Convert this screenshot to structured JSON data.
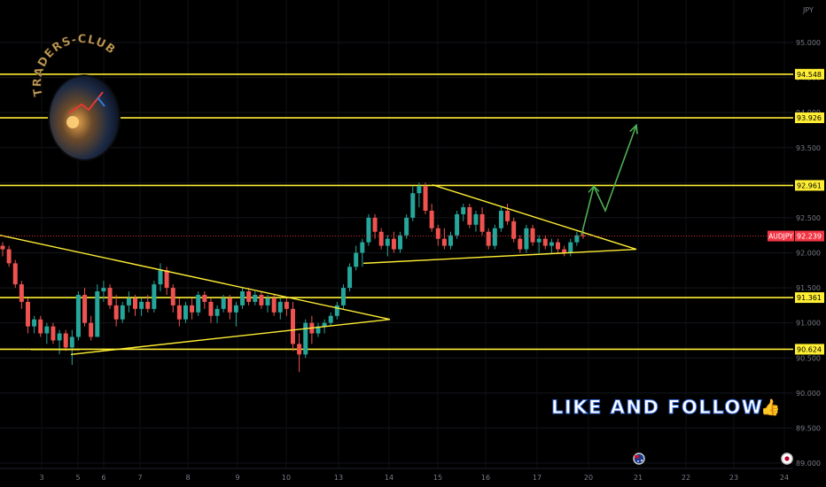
{
  "chart_data": {
    "type": "candlestick",
    "symbol": "AUDJPY",
    "currency": "JPY",
    "current_price": 92.239,
    "ylim": [
      88.95,
      95.25
    ],
    "y_ticks": [
      "95.000",
      "94.500",
      "94.000",
      "93.500",
      "93.000",
      "92.500",
      "92.000",
      "91.500",
      "91.000",
      "90.500",
      "90.000",
      "89.500",
      "89.000"
    ],
    "x_ticks": [
      "3",
      "5",
      "6",
      "7",
      "8",
      "9",
      "10",
      "13",
      "14",
      "15",
      "16",
      "17",
      "20",
      "21",
      "22",
      "23",
      "24"
    ],
    "levels": [
      94.548,
      93.926,
      92.961,
      91.361,
      90.624
    ],
    "level_labels": [
      "94.548",
      "93.926",
      "92.961",
      "91.361",
      "90.624"
    ],
    "ohlc": [
      [
        92.1,
        92.15,
        91.95,
        92.05
      ],
      [
        92.05,
        92.1,
        91.8,
        91.85
      ],
      [
        91.85,
        91.9,
        91.5,
        91.55
      ],
      [
        91.55,
        91.6,
        91.2,
        91.3
      ],
      [
        91.3,
        91.35,
        90.85,
        90.95
      ],
      [
        90.95,
        91.1,
        90.85,
        91.05
      ],
      [
        91.05,
        91.1,
        90.8,
        90.85
      ],
      [
        90.85,
        91.0,
        90.7,
        90.95
      ],
      [
        90.95,
        91.0,
        90.7,
        90.75
      ],
      [
        90.75,
        90.9,
        90.55,
        90.85
      ],
      [
        90.85,
        90.9,
        90.6,
        90.65
      ],
      [
        90.65,
        90.9,
        90.4,
        90.8
      ],
      [
        90.8,
        91.45,
        90.75,
        91.4
      ],
      [
        91.4,
        91.5,
        90.95,
        91.0
      ],
      [
        91.0,
        91.1,
        90.75,
        90.8
      ],
      [
        90.8,
        91.55,
        90.8,
        91.45
      ],
      [
        91.45,
        91.6,
        91.3,
        91.5
      ],
      [
        91.5,
        91.55,
        91.2,
        91.25
      ],
      [
        91.25,
        91.4,
        90.95,
        91.05
      ],
      [
        91.05,
        91.3,
        91.0,
        91.25
      ],
      [
        91.25,
        91.45,
        91.15,
        91.35
      ],
      [
        91.35,
        91.4,
        91.1,
        91.2
      ],
      [
        91.2,
        91.35,
        91.1,
        91.3
      ],
      [
        91.3,
        91.4,
        91.15,
        91.2
      ],
      [
        91.2,
        91.6,
        91.15,
        91.55
      ],
      [
        91.55,
        91.85,
        91.45,
        91.75
      ],
      [
        91.75,
        91.8,
        91.4,
        91.5
      ],
      [
        91.5,
        91.55,
        91.15,
        91.25
      ],
      [
        91.25,
        91.35,
        90.95,
        91.05
      ],
      [
        91.05,
        91.3,
        91.0,
        91.25
      ],
      [
        91.25,
        91.35,
        91.05,
        91.15
      ],
      [
        91.15,
        91.45,
        91.1,
        91.4
      ],
      [
        91.4,
        91.45,
        91.2,
        91.3
      ],
      [
        91.3,
        91.35,
        91.0,
        91.1
      ],
      [
        91.1,
        91.25,
        91.0,
        91.2
      ],
      [
        91.2,
        91.4,
        91.15,
        91.35
      ],
      [
        91.35,
        91.4,
        91.05,
        91.15
      ],
      [
        91.15,
        91.3,
        90.95,
        91.25
      ],
      [
        91.25,
        91.5,
        91.2,
        91.45
      ],
      [
        91.45,
        91.5,
        91.25,
        91.3
      ],
      [
        91.3,
        91.45,
        91.25,
        91.4
      ],
      [
        91.4,
        91.45,
        91.2,
        91.25
      ],
      [
        91.25,
        91.4,
        91.15,
        91.35
      ],
      [
        91.35,
        91.4,
        91.1,
        91.15
      ],
      [
        91.15,
        91.35,
        91.05,
        91.3
      ],
      [
        91.3,
        91.35,
        91.1,
        91.2
      ],
      [
        91.2,
        91.3,
        90.6,
        90.7
      ],
      [
        90.7,
        90.85,
        90.3,
        90.55
      ],
      [
        90.55,
        91.05,
        90.5,
        91.0
      ],
      [
        91.0,
        91.1,
        90.7,
        90.85
      ],
      [
        90.85,
        91.0,
        90.8,
        90.95
      ],
      [
        90.95,
        91.05,
        90.85,
        91.0
      ],
      [
        91.0,
        91.15,
        90.95,
        91.1
      ],
      [
        91.1,
        91.3,
        91.05,
        91.25
      ],
      [
        91.25,
        91.55,
        91.2,
        91.5
      ],
      [
        91.5,
        91.85,
        91.45,
        91.8
      ],
      [
        91.8,
        92.1,
        91.75,
        92.0
      ],
      [
        92.0,
        92.2,
        91.8,
        92.15
      ],
      [
        92.15,
        92.55,
        92.1,
        92.5
      ],
      [
        92.5,
        92.55,
        92.2,
        92.3
      ],
      [
        92.3,
        92.35,
        92.05,
        92.1
      ],
      [
        92.1,
        92.25,
        91.95,
        92.2
      ],
      [
        92.2,
        92.3,
        92.0,
        92.05
      ],
      [
        92.05,
        92.3,
        92.0,
        92.25
      ],
      [
        92.25,
        92.55,
        92.2,
        92.5
      ],
      [
        92.5,
        92.95,
        92.45,
        92.85
      ],
      [
        92.85,
        93.0,
        92.65,
        92.95
      ],
      [
        92.95,
        93.0,
        92.55,
        92.6
      ],
      [
        92.6,
        92.7,
        92.3,
        92.35
      ],
      [
        92.35,
        92.4,
        92.1,
        92.2
      ],
      [
        92.2,
        92.35,
        92.05,
        92.1
      ],
      [
        92.1,
        92.3,
        92.05,
        92.25
      ],
      [
        92.25,
        92.6,
        92.2,
        92.55
      ],
      [
        92.55,
        92.7,
        92.45,
        92.65
      ],
      [
        92.65,
        92.7,
        92.35,
        92.4
      ],
      [
        92.4,
        92.6,
        92.3,
        92.55
      ],
      [
        92.55,
        92.65,
        92.25,
        92.3
      ],
      [
        92.3,
        92.35,
        92.05,
        92.1
      ],
      [
        92.1,
        92.4,
        92.05,
        92.35
      ],
      [
        92.35,
        92.65,
        92.3,
        92.6
      ],
      [
        92.6,
        92.7,
        92.4,
        92.45
      ],
      [
        92.45,
        92.5,
        92.15,
        92.2
      ],
      [
        92.2,
        92.25,
        92.0,
        92.05
      ],
      [
        92.05,
        92.4,
        92.0,
        92.35
      ],
      [
        92.35,
        92.4,
        92.1,
        92.15
      ],
      [
        92.15,
        92.25,
        92.0,
        92.2
      ],
      [
        92.2,
        92.25,
        92.05,
        92.1
      ],
      [
        92.1,
        92.2,
        92.0,
        92.15
      ],
      [
        92.15,
        92.2,
        92.0,
        92.05
      ],
      [
        92.05,
        92.1,
        91.95,
        92.0
      ],
      [
        92.0,
        92.2,
        91.95,
        92.15
      ],
      [
        92.15,
        92.3,
        92.1,
        92.25
      ],
      [
        92.25,
        92.35,
        92.2,
        92.24
      ]
    ],
    "drawings": {
      "triangle1": [
        [
          0,
          92.25
        ],
        [
          440,
          91.05
        ],
        [
          80,
          90.55
        ]
      ],
      "triangle2": [
        [
          488,
          92.97
        ],
        [
          718,
          92.05
        ],
        [
          410,
          91.85
        ]
      ],
      "projection": [
        [
          656,
          92.25
        ],
        [
          670,
          92.95
        ],
        [
          683,
          92.6
        ],
        [
          718,
          93.82
        ]
      ]
    }
  },
  "ui": {
    "logo_text": "TRADERS-CLUB",
    "promo_text": "LIKE AND FOLLOW",
    "promo_emoji": "👍",
    "icons": [
      "australia-flag-icon",
      "japan-flag-icon"
    ],
    "colors": {
      "up": "#26a69a",
      "down": "#ef5350",
      "level": "#ffee33",
      "arrow": "#4caf50",
      "badge": "#f23645"
    }
  }
}
